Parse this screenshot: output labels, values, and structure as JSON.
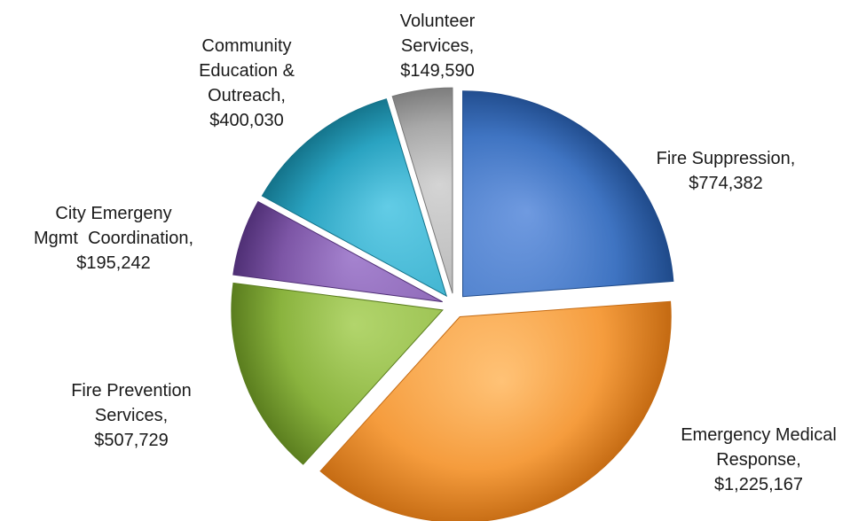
{
  "chart_data": {
    "type": "pie",
    "title": "",
    "legend": "none",
    "slices": [
      {
        "label": [
          "Fire Suppression,",
          "$774,382"
        ],
        "value": 774382,
        "color": "#3f74c2",
        "dark": "#1f4a8a",
        "light": "#6f9ae0"
      },
      {
        "label": [
          "Emergency Medical",
          "Response,",
          "$1,225,167"
        ],
        "value": 1225167,
        "color": "#f59c3d",
        "dark": "#c46a12",
        "light": "#ffc276"
      },
      {
        "label": [
          "Fire Prevention",
          "Services,",
          "$507,729"
        ],
        "value": 507729,
        "color": "#8ab33e",
        "dark": "#5a7d1e",
        "light": "#b2d56c"
      },
      {
        "label": [
          "City Emergeny",
          "Mgmt  Coordination,",
          "$195,242"
        ],
        "value": 195242,
        "color": "#7d56a6",
        "dark": "#4f2f75",
        "light": "#a583cf"
      },
      {
        "label": [
          "Community",
          "Education &",
          "Outreach,",
          "$400,030"
        ],
        "value": 400030,
        "color": "#2aa3c1",
        "dark": "#137188",
        "light": "#62cce6"
      },
      {
        "label": [
          "Volunteer",
          "Services,",
          "$149,590"
        ],
        "value": 149590,
        "color": "#a8a8a8",
        "dark": "#777777",
        "light": "#d4d4d4"
      }
    ]
  }
}
